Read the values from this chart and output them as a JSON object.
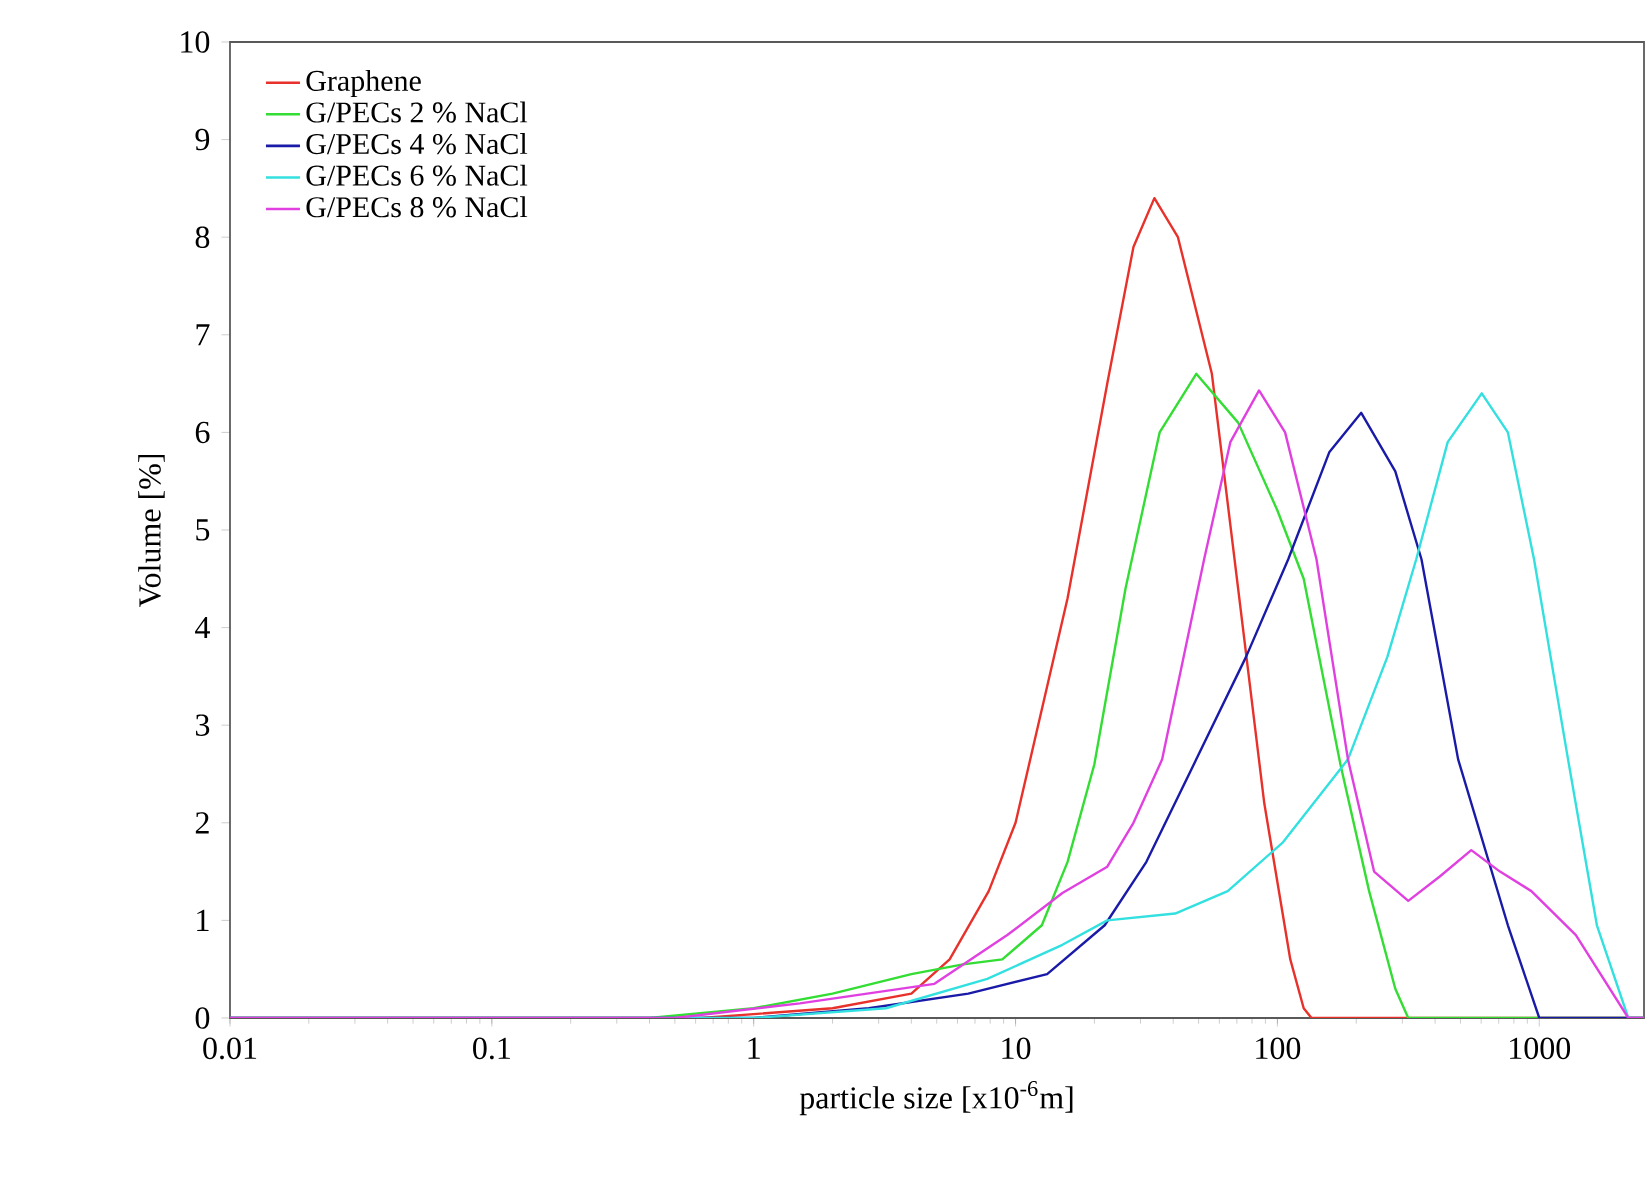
{
  "chart_data": {
    "type": "line",
    "xlabel": "particle size [x10$^{-6}$m]",
    "ylabel": "Volume [%]",
    "log": "x",
    "legend": "top left",
    "xlim": [
      0.01,
      2512
    ],
    "xticks": [
      0.01,
      0.1,
      1,
      10,
      100,
      1000
    ],
    "ylim": [
      0,
      10
    ],
    "yticks": [
      0,
      1,
      2,
      3,
      4,
      5,
      6,
      7,
      8,
      9,
      10
    ],
    "series": [
      {
        "name": "Graphene",
        "color": "#e8312a",
        "x": [
          0.01,
          0.63,
          2,
          4,
          5.6,
          7.9,
          10,
          15.8,
          22.4,
          28.2,
          33.9,
          41.7,
          56.2,
          70.8,
          89.1,
          112,
          126,
          135,
          2512
        ],
        "values": [
          0,
          0,
          0.1,
          0.25,
          0.6,
          1.3,
          2.0,
          4.3,
          6.5,
          7.9,
          8.4,
          8.0,
          6.6,
          4.4,
          2.2,
          0.6,
          0.1,
          0,
          0
        ]
      },
      {
        "name": "G/PECs 2 % NaCl",
        "color": "#33dd33",
        "x": [
          0.01,
          0.4,
          1,
          2,
          4,
          6.3,
          8.9,
          12.6,
          15.8,
          20,
          26.3,
          35.5,
          49,
          70.8,
          100,
          126,
          174,
          224,
          282,
          316,
          2512
        ],
        "values": [
          0,
          0,
          0.1,
          0.25,
          0.45,
          0.55,
          0.6,
          0.95,
          1.6,
          2.6,
          4.4,
          6.0,
          6.6,
          6.1,
          5.2,
          4.5,
          2.6,
          1.3,
          0.3,
          0,
          0
        ]
      },
      {
        "name": "G/PECs 4 % NaCl",
        "color": "#1a1aa8",
        "x": [
          0.01,
          1,
          2.75,
          6.6,
          13.2,
          21.9,
          31.6,
          49,
          75.9,
          110,
          158,
          209,
          282,
          355,
          490,
          759,
          1000,
          2512
        ],
        "values": [
          0,
          0,
          0.1,
          0.25,
          0.45,
          0.95,
          1.6,
          2.65,
          3.7,
          4.7,
          5.8,
          6.2,
          5.6,
          4.7,
          2.65,
          0.95,
          0,
          0
        ]
      },
      {
        "name": "G/PECs 6 % NaCl",
        "color": "#33e0e0",
        "x": [
          0.01,
          1,
          3.2,
          7.8,
          15.1,
          22.4,
          40.7,
          64.6,
          105,
          186,
          263,
          339,
          447,
          603,
          759,
          955,
          1288,
          1660,
          2188,
          2512
        ],
        "values": [
          0,
          0,
          0.1,
          0.4,
          0.75,
          1.0,
          1.07,
          1.3,
          1.8,
          2.65,
          3.7,
          4.7,
          5.9,
          6.4,
          6.0,
          4.7,
          2.65,
          0.95,
          0,
          0
        ]
      },
      {
        "name": "G/PECs 8 % NaCl",
        "color": "#e040e0",
        "x": [
          0.01,
          0.5,
          1.5,
          4.9,
          9.3,
          15.1,
          22.4,
          28.2,
          36.3,
          52.5,
          66.1,
          85.1,
          107,
          141,
          186,
          234,
          316,
          417,
          550,
          708,
          933,
          1380,
          2188,
          2512
        ],
        "values": [
          0,
          0,
          0.15,
          0.35,
          0.85,
          1.28,
          1.55,
          2.0,
          2.65,
          4.7,
          5.9,
          6.43,
          6.0,
          4.7,
          2.65,
          1.5,
          1.2,
          1.45,
          1.72,
          1.5,
          1.3,
          0.85,
          0,
          0
        ]
      }
    ]
  }
}
